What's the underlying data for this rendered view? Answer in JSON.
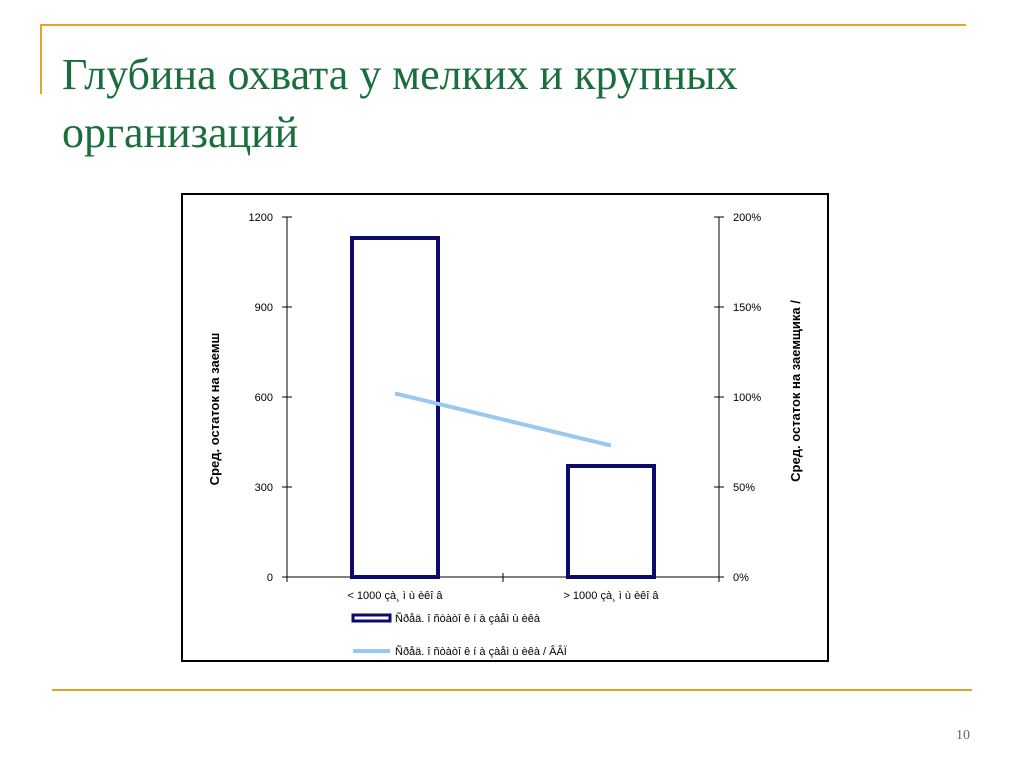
{
  "slide": {
    "title": "Глубина охвата у мелких и крупных организаций",
    "page_number": "10",
    "accent_color": "#e0a820",
    "title_color": "#1a6e3c"
  },
  "chart_data": {
    "type": "bar",
    "categories": [
      "< 1000 çà¸ ì ù èêî â",
      "> 1000 çà¸ ì ù èêî â"
    ],
    "series": [
      {
        "name": "Ñðåä. î ñòàòî ê í à çàåì ù èêà",
        "type": "bar",
        "axis": "left",
        "values": [
          1130,
          370
        ],
        "color": "#0b0b6b"
      },
      {
        "name": "Ñðåä. î ñòàòî ê í à çàåì ù èêà / ÂÂÏ",
        "type": "line",
        "axis": "right",
        "values": [
          1.02,
          0.73
        ],
        "color": "#99c8f0"
      }
    ],
    "ylabel": "Сред. остаток на заемш",
    "y2label": "Сред. остаток на заемщика /",
    "ylim": [
      0,
      1200
    ],
    "y2lim": [
      0,
      2
    ],
    "yticks": [
      {
        "value": 0,
        "label": "0"
      },
      {
        "value": 300,
        "label": "300"
      },
      {
        "value": 600,
        "label": "600"
      },
      {
        "value": 900,
        "label": "900"
      },
      {
        "value": 1200,
        "label": "1200"
      }
    ],
    "y2ticks": [
      {
        "value": 0,
        "label": "0%"
      },
      {
        "value": 0.5,
        "label": "50%"
      },
      {
        "value": 1,
        "label": "100%"
      },
      {
        "value": 1.5,
        "label": "150%"
      },
      {
        "value": 2,
        "label": "200%"
      }
    ],
    "legend_position": "bottom",
    "grid": false
  }
}
